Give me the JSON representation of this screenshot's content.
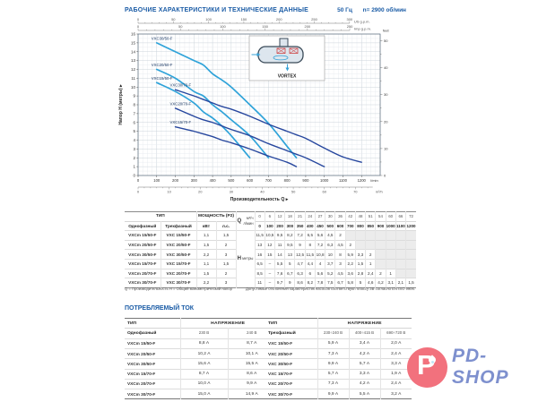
{
  "header": {
    "title": "РАБОЧИЕ ХАРАКТЕРИСТИКИ И ТЕХНИЧЕСКИЕ ДАННЫЕ",
    "frequency": "50 Гц",
    "speed": "n= 2900 об/мин"
  },
  "chart_data": {
    "type": "line",
    "xlabel": "Производительность Q ▸",
    "ylabel": "Напор H (метры) ▸",
    "x_unit": "l/min",
    "x_unit2": "m³/h",
    "xlim": [
      0,
      1300
    ],
    "ylim": [
      0,
      16
    ],
    "x_ticks_lmin": {
      "step": 100,
      "max": 1200
    },
    "x_axis_m3h": {
      "step": 10,
      "max": 70,
      "lmin_per_unit": 16.667
    },
    "top_axes": [
      {
        "unit": "US g.p.m.",
        "max": 300,
        "step": 50,
        "lmin_per_unit": 3.785
      },
      {
        "unit": "Imp g.p.m.",
        "max": 250,
        "step": 50,
        "lmin_per_unit": 4.546
      }
    ],
    "right_axis": {
      "unit": "feet",
      "max": 50,
      "step": 10,
      "m_per_unit": 0.3048
    },
    "inset_label": "VORTEX",
    "grid": true,
    "series": [
      {
        "name": "VXC30/50-F",
        "color": "#2fa3d9",
        "x": [
          100,
          200,
          300,
          350,
          400,
          450,
          500,
          600,
          700,
          800,
          850
        ],
        "y": [
          15,
          14,
          13,
          12.5,
          11.5,
          10.8,
          10,
          8,
          5.9,
          3.3,
          2
        ]
      },
      {
        "name": "VXC20/50-F",
        "color": "#2fa3d9",
        "x": [
          100,
          200,
          300,
          350,
          400,
          450,
          500,
          600,
          700
        ],
        "y": [
          12,
          11,
          9.5,
          9,
          8,
          7.2,
          6.3,
          4.5,
          2
        ]
      },
      {
        "name": "VXC15/50-F",
        "color": "#2fa3d9",
        "x": [
          100,
          200,
          300,
          350,
          400,
          450,
          500,
          600
        ],
        "y": [
          10.5,
          9.5,
          8.2,
          7.2,
          6.5,
          5.6,
          4.5,
          2
        ]
      },
      {
        "name": "VXC30/70-F",
        "color": "#27479e",
        "x": [
          200,
          300,
          350,
          400,
          450,
          500,
          600,
          700,
          800,
          850,
          900,
          1000,
          1100,
          1200
        ],
        "y": [
          9.7,
          9,
          8.6,
          8.2,
          7.8,
          7.5,
          6.7,
          5.8,
          5,
          4.6,
          4.2,
          3.1,
          2.1,
          1.5
        ]
      },
      {
        "name": "VXC20/70-F",
        "color": "#27479e",
        "x": [
          200,
          300,
          350,
          400,
          450,
          500,
          600,
          700,
          800,
          850,
          900,
          1000
        ],
        "y": [
          7.6,
          6.7,
          6.3,
          6,
          5.6,
          5.2,
          4.5,
          3.6,
          2.8,
          2.4,
          2,
          1
        ]
      },
      {
        "name": "VXC15/70-F",
        "color": "#27479e",
        "x": [
          200,
          300,
          350,
          400,
          450,
          500,
          600,
          700,
          800,
          850
        ],
        "y": [
          5.5,
          5,
          4.7,
          4.4,
          4,
          3.7,
          3,
          2.2,
          1.5,
          1
        ]
      }
    ]
  },
  "tech_table": {
    "type_header": "ТИП",
    "power_header": "МОЩНОСТЬ (Р2)",
    "col_single": "Однофазный",
    "col_three": "Трехфазный",
    "col_kw": "кВт",
    "col_hp": "л.с.",
    "q_label": "Q",
    "unit_m3h": "м³/ч",
    "unit_lmin": "л/мин",
    "h_label": "Н",
    "h_unit": "метры",
    "q_m3h": [
      "0",
      "6",
      "12",
      "18",
      "21",
      "24",
      "27",
      "30",
      "36",
      "42",
      "48",
      "51",
      "54",
      "60",
      "66",
      "72"
    ],
    "q_lmin": [
      "0",
      "100",
      "200",
      "300",
      "350",
      "400",
      "450",
      "500",
      "600",
      "700",
      "800",
      "850",
      "900",
      "1000",
      "1100",
      "1200"
    ],
    "rows": [
      {
        "single": "VXCm 15/50-F",
        "three": "VXC 15/50-F",
        "kw": "1,1",
        "hp": "1,5",
        "h": [
          "11,5",
          "10,5",
          "9,5",
          "8,2",
          "7,2",
          "6,5",
          "5,6",
          "4,5",
          "2",
          "",
          "",
          "",
          "",
          "",
          "",
          ""
        ]
      },
      {
        "single": "VXCm 20/50-F",
        "three": "VXC 20/50-F",
        "kw": "1,5",
        "hp": "2",
        "h": [
          "13",
          "12",
          "11",
          "9,5",
          "9",
          "8",
          "7,2",
          "6,3",
          "4,5",
          "2",
          "",
          "",
          "",
          "",
          "",
          ""
        ]
      },
      {
        "single": "VXCm 30/50-F",
        "three": "VXC 30/50-F",
        "kw": "2,2",
        "hp": "3",
        "h": [
          "16",
          "15",
          "14",
          "13",
          "12,5",
          "11,5",
          "10,8",
          "10",
          "8",
          "5,9",
          "3,3",
          "2",
          "",
          "",
          "",
          ""
        ]
      },
      {
        "single": "VXCm 15/70-F",
        "three": "VXC 15/70-F",
        "kw": "1,1",
        "hp": "1,5",
        "h": [
          "6,5",
          "–",
          "5,5",
          "5",
          "4,7",
          "4,4",
          "4",
          "3,7",
          "3",
          "2,2",
          "1,5",
          "1",
          "",
          "",
          "",
          ""
        ]
      },
      {
        "single": "VXCm 20/70-F",
        "three": "VXC 20/70-F",
        "kw": "1,5",
        "hp": "2",
        "h": [
          "8,5",
          "–",
          "7,6",
          "6,7",
          "6,3",
          "6",
          "5,6",
          "5,2",
          "4,5",
          "3,6",
          "2,8",
          "2,4",
          "2",
          "1",
          "",
          ""
        ]
      },
      {
        "single": "VXCm 30/70-F",
        "three": "VXC 30/70-F",
        "kw": "2,2",
        "hp": "3",
        "h": [
          "11",
          "–",
          "9,7",
          "9",
          "8,6",
          "8,2",
          "7,8",
          "7,5",
          "6,7",
          "5,8",
          "5",
          "4,6",
          "4,2",
          "3,1",
          "2,1",
          "1,5"
        ]
      }
    ]
  },
  "footnotes": {
    "left": "Q = Производительность    H = Общий манометрический напор",
    "right": "Допустимые отклонения характеристик насосов соответствуют классу 3B согласно EN ISO 9906."
  },
  "current": {
    "title": "ПОТРЕБЛЯЕМЫЙ ТОК",
    "single": {
      "type_label": "ТИП",
      "phase_label": "Однофазный",
      "voltage_label": "НАПРЯЖЕНИЕ",
      "voltages": [
        "230 В",
        "240 В"
      ],
      "rows": [
        [
          "VXCm 15/50-F",
          "8,8 А",
          "8,7 А"
        ],
        [
          "VXCm 20/50-F",
          "10,2 А",
          "10,1 А"
        ],
        [
          "VXCm 30/50-F",
          "15,6 А",
          "15,5 А"
        ],
        [
          "VXCm 15/70-F",
          "8,7 А",
          "8,6 А"
        ],
        [
          "VXCm 20/70-F",
          "10,0 А",
          "9,9 А"
        ],
        [
          "VXCm 30/70-F",
          "15,0 А",
          "14,9 А"
        ]
      ]
    },
    "three": {
      "type_label": "ТИП",
      "phase_label": "Трехфазный",
      "voltage_label": "НАПРЯЖЕНИЕ",
      "voltages": [
        "230÷240 В",
        "400÷415 В",
        "690÷720 В"
      ],
      "rows": [
        [
          "VXC 15/50-F",
          "5,9 А",
          "3,4 А",
          "2,0 А"
        ],
        [
          "VXC 20/50-F",
          "7,3 А",
          "4,2 А",
          "2,4 А"
        ],
        [
          "VXC 30/50-F",
          "9,9 А",
          "5,7 А",
          "3,3 А"
        ],
        [
          "VXC 15/70-F",
          "5,7 А",
          "3,3 А",
          "1,9 А"
        ],
        [
          "VXC 20/70-F",
          "7,3 А",
          "4,2 А",
          "2,4 А"
        ],
        [
          "VXC 30/70-F",
          "9,9 А",
          "5,5 А",
          "3,2 А"
        ]
      ]
    }
  },
  "logo": {
    "text": "PD-SHOP",
    "letter": "P",
    "circle_color": "#f2717d",
    "text_color": "#7e90ce"
  }
}
